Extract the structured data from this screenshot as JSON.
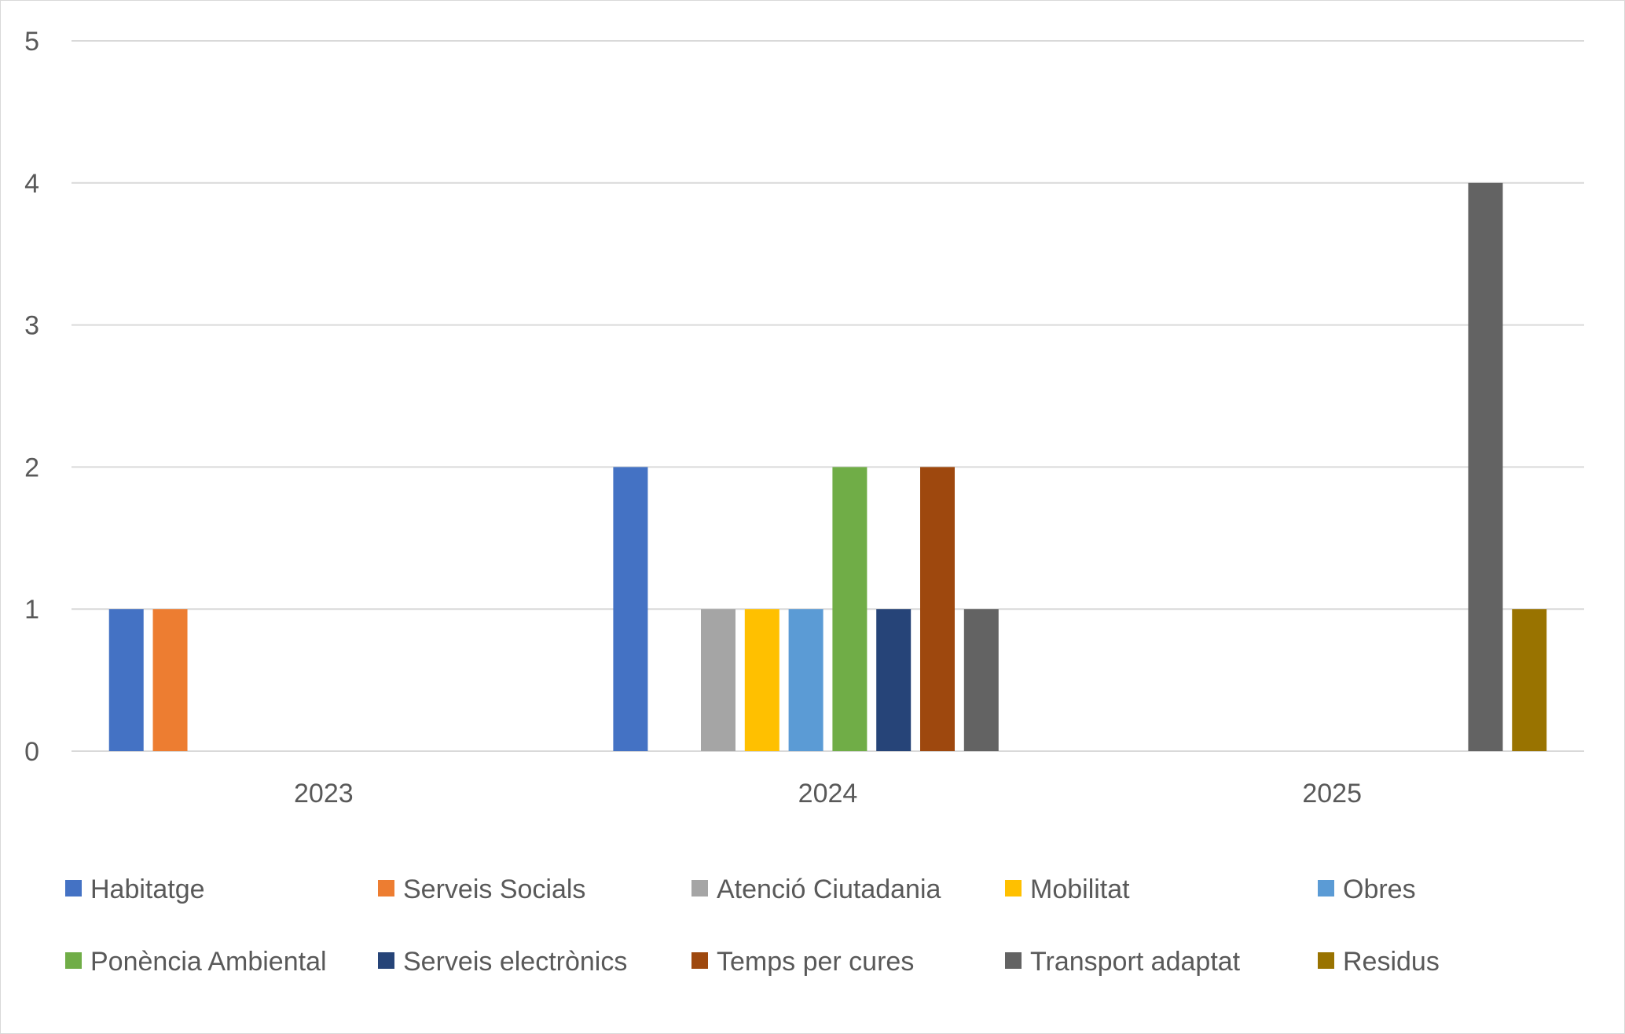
{
  "chart_data": {
    "type": "bar",
    "title": "",
    "xlabel": "",
    "ylabel": "",
    "categories": [
      "2023",
      "2024",
      "2025"
    ],
    "ylim": [
      0,
      5
    ],
    "yticks": [
      0,
      1,
      2,
      3,
      4,
      5
    ],
    "grid": true,
    "legend_position": "bottom",
    "series": [
      {
        "name": "Habitatge",
        "color": "#4472C4",
        "values": [
          1,
          2,
          0
        ]
      },
      {
        "name": "Serveis Socials",
        "color": "#ED7D31",
        "values": [
          1,
          0,
          0
        ]
      },
      {
        "name": "Atenció Ciutadania",
        "color": "#A5A5A5",
        "values": [
          0,
          1,
          0
        ]
      },
      {
        "name": "Mobilitat",
        "color": "#FFC000",
        "values": [
          0,
          1,
          0
        ]
      },
      {
        "name": "Obres",
        "color": "#5B9BD5",
        "values": [
          0,
          1,
          0
        ]
      },
      {
        "name": "Ponència Ambiental",
        "color": "#70AD47",
        "values": [
          0,
          2,
          0
        ]
      },
      {
        "name": "Serveis electrònics",
        "color": "#264478",
        "values": [
          0,
          1,
          0
        ]
      },
      {
        "name": "Temps per cures",
        "color": "#9E480E",
        "values": [
          0,
          2,
          0
        ]
      },
      {
        "name": "Transport adaptat",
        "color": "#636363",
        "values": [
          0,
          1,
          4
        ]
      },
      {
        "name": "Residus",
        "color": "#997300",
        "values": [
          0,
          0,
          1
        ]
      }
    ]
  }
}
